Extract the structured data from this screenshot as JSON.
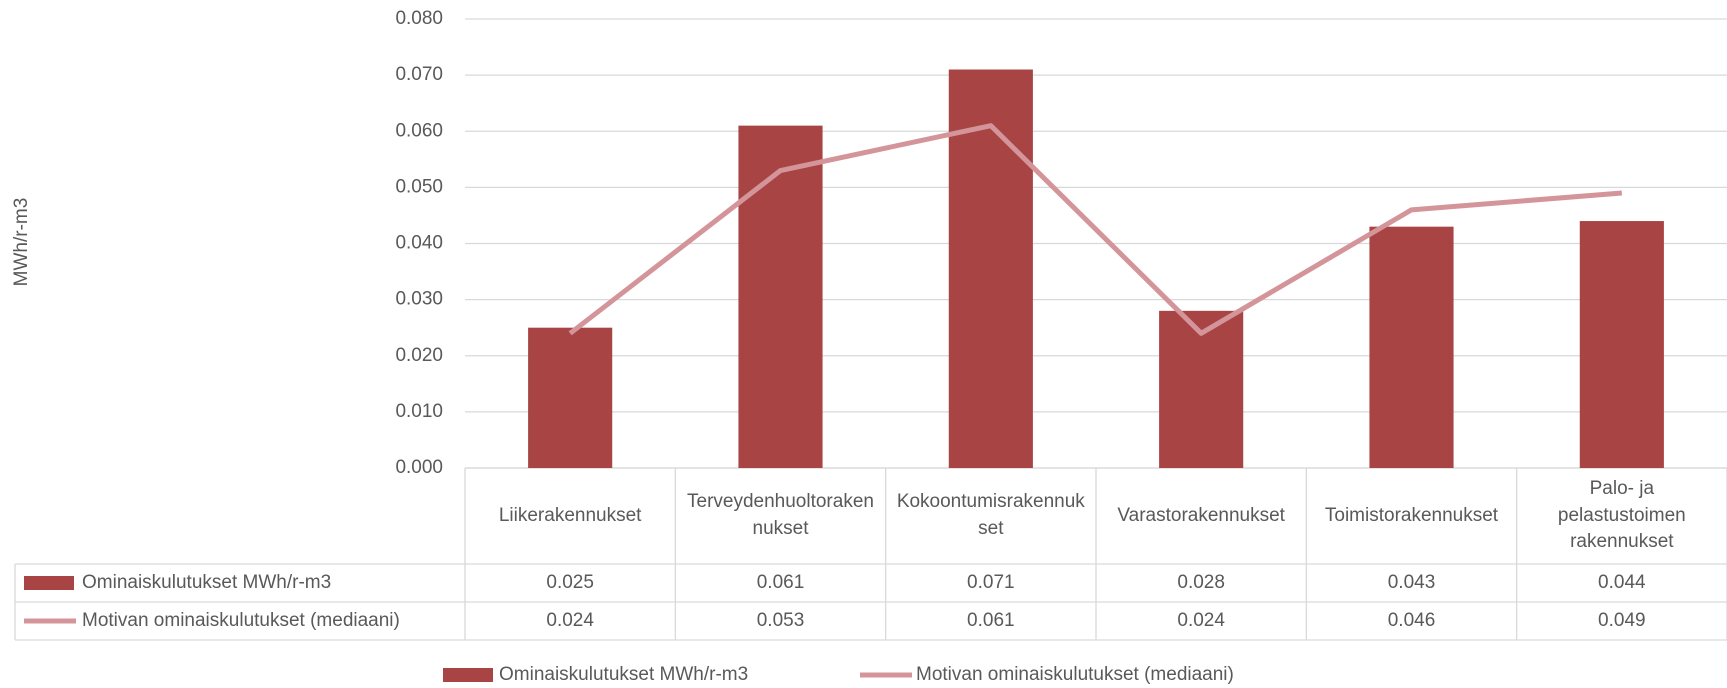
{
  "chart_data": {
    "type": "bar",
    "y_label": "MWh/r-m3",
    "categories": [
      "Liikerakennukset",
      "Terveydenhuoltorakennukset",
      "Kokoontumisrakennukset",
      "Varastorakennukset",
      "Toimistorakennukset",
      "Palo- ja pelastustoimen rakennukset"
    ],
    "series": [
      {
        "name": "Ominaiskulutukset MWh/r-m3",
        "type": "bar",
        "color": "#a84444",
        "values": [
          0.025,
          0.061,
          0.071,
          0.028,
          0.043,
          0.044
        ]
      },
      {
        "name": "Motivan ominaiskulutukset (mediaani)",
        "type": "line",
        "color": "#d4959a",
        "values": [
          0.024,
          0.053,
          0.061,
          0.024,
          0.046,
          0.049
        ]
      }
    ],
    "ylim": [
      0,
      0.08
    ],
    "yticks": [
      {
        "value": 0,
        "label": "0.000"
      },
      {
        "value": 0.01,
        "label": "0.010"
      },
      {
        "value": 0.02,
        "label": "0.020"
      },
      {
        "value": 0.03,
        "label": "0.030"
      },
      {
        "value": 0.04,
        "label": "0.040"
      },
      {
        "value": 0.05,
        "label": "0.050"
      },
      {
        "value": 0.06,
        "label": "0.060"
      },
      {
        "value": 0.07,
        "label": "0.070"
      },
      {
        "value": 0.08,
        "label": "0.080"
      }
    ],
    "grid": true,
    "legend": "bottom",
    "data_table": true
  }
}
